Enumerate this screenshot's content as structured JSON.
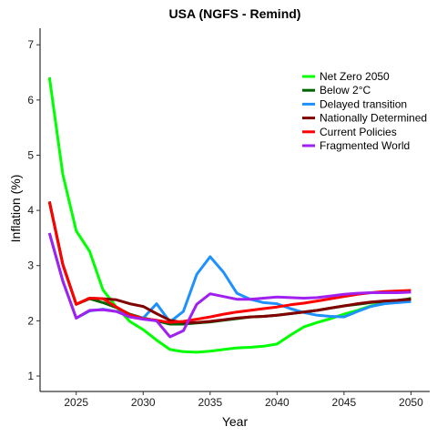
{
  "chart_data": {
    "type": "line",
    "title": "USA (NGFS - Remind)",
    "xlabel": "Year",
    "ylabel": "Inflation (%)",
    "xlim": [
      2022.3,
      2051.4
    ],
    "ylim": [
      0.72,
      7.3
    ],
    "x_ticks": [
      2025,
      2030,
      2035,
      2040,
      2045,
      2050
    ],
    "y_ticks": [
      1,
      2,
      3,
      4,
      5,
      6,
      7
    ],
    "grid": false,
    "legend_position": "top-right",
    "series": [
      {
        "name": "Net Zero 2050",
        "color": "#00ff00",
        "points": [
          [
            2023,
            6.41
          ],
          [
            2024,
            4.65
          ],
          [
            2025,
            3.63
          ],
          [
            2026,
            3.26
          ],
          [
            2027,
            2.56
          ],
          [
            2028,
            2.25
          ],
          [
            2029,
            1.99
          ],
          [
            2030,
            1.84
          ],
          [
            2031,
            1.65
          ],
          [
            2032,
            1.48
          ],
          [
            2033,
            1.44
          ],
          [
            2034,
            1.43
          ],
          [
            2035,
            1.45
          ],
          [
            2036,
            1.48
          ],
          [
            2037,
            1.51
          ],
          [
            2038,
            1.52
          ],
          [
            2039,
            1.54
          ],
          [
            2040,
            1.58
          ],
          [
            2041,
            1.74
          ],
          [
            2042,
            1.89
          ],
          [
            2043,
            1.97
          ],
          [
            2044,
            2.04
          ],
          [
            2045,
            2.12
          ],
          [
            2046,
            2.19
          ],
          [
            2047,
            2.27
          ],
          [
            2048,
            2.31
          ],
          [
            2049,
            2.34
          ],
          [
            2050,
            2.41
          ]
        ]
      },
      {
        "name": "Below 2°C",
        "color": "#006400",
        "points": [
          [
            2023,
            4.16
          ],
          [
            2024,
            3.02
          ],
          [
            2025,
            2.3
          ],
          [
            2026,
            2.4
          ],
          [
            2027,
            2.33
          ],
          [
            2028,
            2.24
          ],
          [
            2029,
            2.12
          ],
          [
            2030,
            2.05
          ],
          [
            2031,
            2.0
          ],
          [
            2032,
            1.94
          ],
          [
            2033,
            1.94
          ],
          [
            2034,
            1.96
          ],
          [
            2035,
            1.98
          ],
          [
            2036,
            2.01
          ],
          [
            2037,
            2.04
          ],
          [
            2038,
            2.07
          ],
          [
            2039,
            2.08
          ],
          [
            2040,
            2.1
          ],
          [
            2041,
            2.13
          ],
          [
            2042,
            2.16
          ],
          [
            2043,
            2.19
          ],
          [
            2044,
            2.23
          ],
          [
            2045,
            2.27
          ],
          [
            2046,
            2.3
          ],
          [
            2047,
            2.33
          ],
          [
            2048,
            2.35
          ],
          [
            2049,
            2.37
          ],
          [
            2050,
            2.4
          ]
        ]
      },
      {
        "name": "Delayed transition",
        "color": "#1e90ff",
        "points": [
          [
            2023,
            3.59
          ],
          [
            2024,
            2.72
          ],
          [
            2025,
            2.05
          ],
          [
            2026,
            2.18
          ],
          [
            2027,
            2.21
          ],
          [
            2028,
            2.17
          ],
          [
            2029,
            2.1
          ],
          [
            2030,
            2.05
          ],
          [
            2031,
            2.31
          ],
          [
            2032,
            1.98
          ],
          [
            2033,
            2.17
          ],
          [
            2034,
            2.84
          ],
          [
            2035,
            3.16
          ],
          [
            2036,
            2.88
          ],
          [
            2037,
            2.5
          ],
          [
            2038,
            2.39
          ],
          [
            2039,
            2.33
          ],
          [
            2040,
            2.31
          ],
          [
            2041,
            2.22
          ],
          [
            2042,
            2.15
          ],
          [
            2043,
            2.1
          ],
          [
            2044,
            2.08
          ],
          [
            2045,
            2.07
          ],
          [
            2046,
            2.17
          ],
          [
            2047,
            2.26
          ],
          [
            2048,
            2.31
          ],
          [
            2049,
            2.33
          ],
          [
            2050,
            2.35
          ]
        ]
      },
      {
        "name": "Nationally Determined",
        "color": "#800000",
        "points": [
          [
            2023,
            4.16
          ],
          [
            2024,
            3.02
          ],
          [
            2025,
            2.3
          ],
          [
            2026,
            2.41
          ],
          [
            2027,
            2.4
          ],
          [
            2028,
            2.38
          ],
          [
            2029,
            2.31
          ],
          [
            2030,
            2.26
          ],
          [
            2031,
            2.13
          ],
          [
            2032,
            2.01
          ],
          [
            2033,
            1.97
          ],
          [
            2034,
            1.97
          ],
          [
            2035,
            1.99
          ],
          [
            2036,
            2.02
          ],
          [
            2037,
            2.05
          ],
          [
            2038,
            2.07
          ],
          [
            2039,
            2.08
          ],
          [
            2040,
            2.1
          ],
          [
            2041,
            2.13
          ],
          [
            2042,
            2.16
          ],
          [
            2043,
            2.19
          ],
          [
            2044,
            2.23
          ],
          [
            2045,
            2.27
          ],
          [
            2046,
            2.31
          ],
          [
            2047,
            2.34
          ],
          [
            2048,
            2.36
          ],
          [
            2049,
            2.37
          ],
          [
            2050,
            2.39
          ]
        ]
      },
      {
        "name": "Current Policies",
        "color": "#ff0000",
        "points": [
          [
            2023,
            4.16
          ],
          [
            2024,
            3.02
          ],
          [
            2025,
            2.3
          ],
          [
            2026,
            2.41
          ],
          [
            2027,
            2.4
          ],
          [
            2028,
            2.25
          ],
          [
            2029,
            2.11
          ],
          [
            2030,
            2.04
          ],
          [
            2031,
            2.01
          ],
          [
            2032,
            1.97
          ],
          [
            2033,
            1.99
          ],
          [
            2034,
            2.03
          ],
          [
            2035,
            2.07
          ],
          [
            2036,
            2.12
          ],
          [
            2037,
            2.16
          ],
          [
            2038,
            2.19
          ],
          [
            2039,
            2.22
          ],
          [
            2040,
            2.25
          ],
          [
            2041,
            2.29
          ],
          [
            2042,
            2.32
          ],
          [
            2043,
            2.36
          ],
          [
            2044,
            2.4
          ],
          [
            2045,
            2.44
          ],
          [
            2046,
            2.48
          ],
          [
            2047,
            2.51
          ],
          [
            2048,
            2.53
          ],
          [
            2049,
            2.54
          ],
          [
            2050,
            2.55
          ]
        ]
      },
      {
        "name": "Fragmented World",
        "color": "#a020f0",
        "points": [
          [
            2023,
            3.59
          ],
          [
            2024,
            2.72
          ],
          [
            2025,
            2.05
          ],
          [
            2026,
            2.19
          ],
          [
            2027,
            2.2
          ],
          [
            2028,
            2.17
          ],
          [
            2029,
            2.07
          ],
          [
            2030,
            2.03
          ],
          [
            2031,
            2.0
          ],
          [
            2032,
            1.71
          ],
          [
            2033,
            1.82
          ],
          [
            2034,
            2.3
          ],
          [
            2035,
            2.49
          ],
          [
            2036,
            2.44
          ],
          [
            2037,
            2.39
          ],
          [
            2038,
            2.39
          ],
          [
            2039,
            2.41
          ],
          [
            2040,
            2.43
          ],
          [
            2041,
            2.42
          ],
          [
            2042,
            2.41
          ],
          [
            2043,
            2.42
          ],
          [
            2044,
            2.45
          ],
          [
            2045,
            2.48
          ],
          [
            2046,
            2.5
          ],
          [
            2047,
            2.51
          ],
          [
            2048,
            2.51
          ],
          [
            2049,
            2.51
          ],
          [
            2050,
            2.52
          ]
        ]
      }
    ]
  }
}
